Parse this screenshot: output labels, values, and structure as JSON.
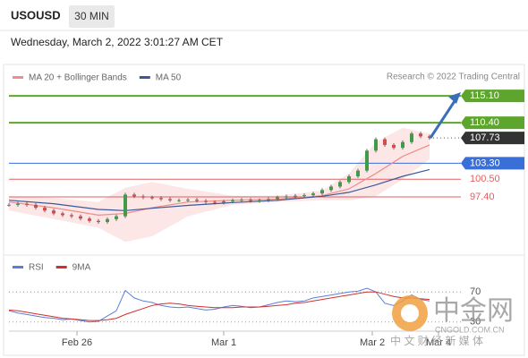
{
  "header": {
    "symbol": "USOUSD",
    "interval": "30 MIN",
    "datetime": "Wednesday, March 2, 2022 3:01:27 AM CET",
    "credit": "Research © 2022 Trading Central"
  },
  "chart_data": [
    {
      "type": "candlestick",
      "x": [
        0,
        1,
        2,
        3,
        4,
        5,
        6,
        7,
        8,
        9,
        10,
        11,
        12,
        13,
        14,
        15,
        16,
        17,
        18,
        19,
        20,
        21,
        22,
        23,
        24,
        25,
        26,
        27,
        28,
        29,
        30,
        31,
        32,
        33,
        34,
        35,
        36,
        37,
        38,
        39,
        40,
        41,
        42,
        43,
        44,
        45,
        46,
        47
      ],
      "close": [
        96.0,
        96.2,
        96.0,
        95.5,
        95.0,
        94.5,
        94.2,
        94.0,
        93.6,
        93.2,
        93.0,
        93.5,
        94.0,
        97.8,
        97.5,
        97.3,
        97.2,
        97.0,
        96.8,
        96.8,
        96.9,
        96.7,
        96.5,
        96.4,
        96.6,
        96.8,
        96.9,
        96.7,
        96.8,
        97.0,
        97.3,
        97.5,
        97.6,
        97.7,
        98.0,
        98.6,
        99.2,
        100.0,
        101.0,
        102.0,
        105.5,
        107.5,
        106.5,
        106.0,
        107.0,
        108.5,
        108.0,
        107.73
      ],
      "up_color": "#3f9a4c",
      "down_color": "#d24a4a",
      "xlim": [
        0,
        50.5
      ],
      "ylim": [
        87.2,
        117
      ],
      "series": [
        {
          "name": "MA 20 + Bollinger Bands",
          "color": "#f08c8c",
          "x": [
            0,
            5,
            10,
            13,
            16,
            20,
            25,
            30,
            35,
            38,
            41,
            44,
            47
          ],
          "values": [
            96.5,
            95.5,
            94.2,
            94.5,
            95.5,
            96.5,
            96.8,
            97.0,
            97.6,
            98.8,
            101.5,
            104.5,
            106.5
          ],
          "upper": [
            97.5,
            97.2,
            96.5,
            99.0,
            100.0,
            98.8,
            97.6,
            97.6,
            98.5,
            101.5,
            107.0,
            109.5,
            108.5
          ],
          "lower": [
            95.0,
            93.5,
            92.0,
            89.5,
            90.5,
            94.0,
            96.0,
            96.5,
            96.8,
            96.8,
            97.5,
            100.5,
            104.0
          ]
        },
        {
          "name": "MA 50",
          "color": "#3b5998",
          "x": [
            0,
            5,
            10,
            13,
            16,
            20,
            25,
            30,
            35,
            38,
            41,
            44,
            47
          ],
          "values": [
            96.8,
            96.2,
            95.2,
            95.0,
            95.4,
            95.9,
            96.4,
            96.8,
            97.5,
            98.2,
            99.5,
            101.0,
            102.2
          ]
        }
      ],
      "levels": [
        {
          "value": 115.1,
          "label": "115.10",
          "color": "#5ea52e",
          "style": "box"
        },
        {
          "value": 110.4,
          "label": "110.40",
          "color": "#5ea52e",
          "style": "box"
        },
        {
          "value": 107.73,
          "label": "107.73",
          "color": "#333333",
          "style": "current"
        },
        {
          "value": 103.3,
          "label": "103.30",
          "color": "#3a6fd8",
          "style": "box"
        },
        {
          "value": 100.5,
          "label": "100.50",
          "color": "#e06060",
          "style": "text"
        },
        {
          "value": 97.4,
          "label": "97.40",
          "color": "#e06060",
          "style": "text"
        }
      ]
    },
    {
      "type": "line",
      "x": [
        0,
        1,
        2,
        3,
        4,
        5,
        6,
        7,
        8,
        9,
        10,
        11,
        12,
        13,
        14,
        15,
        16,
        17,
        18,
        19,
        20,
        21,
        22,
        23,
        24,
        25,
        26,
        27,
        28,
        29,
        30,
        31,
        32,
        33,
        34,
        35,
        36,
        37,
        38,
        39,
        40,
        41,
        42,
        43,
        44,
        45,
        46,
        47
      ],
      "series": [
        {
          "name": "RSI",
          "color": "#5b7fd6",
          "values": [
            45,
            42,
            40,
            38,
            36,
            35,
            33,
            34,
            32,
            30,
            31,
            38,
            45,
            72,
            62,
            58,
            56,
            52,
            50,
            49,
            50,
            48,
            46,
            47,
            50,
            52,
            51,
            49,
            50,
            53,
            56,
            58,
            57,
            58,
            62,
            64,
            66,
            68,
            70,
            71,
            75,
            70,
            55,
            52,
            58,
            66,
            60,
            58
          ]
        },
        {
          "name": "9MA",
          "color": "#d03030",
          "values": [
            46,
            45,
            43,
            41,
            39,
            37,
            35,
            34,
            33,
            32,
            32,
            33,
            35,
            40,
            44,
            48,
            52,
            54,
            55,
            54,
            52,
            51,
            50,
            49,
            49,
            49,
            50,
            50,
            50,
            51,
            52,
            53,
            55,
            56,
            58,
            60,
            62,
            64,
            66,
            68,
            70,
            70,
            67,
            64,
            62,
            62,
            61,
            60
          ]
        }
      ],
      "xlim": [
        0,
        50.5
      ],
      "ylim": [
        0,
        100
      ],
      "yticks": [
        30,
        70
      ],
      "xticks": [
        {
          "value": 7.6,
          "label": "Feb 26"
        },
        {
          "value": 24,
          "label": "Mar 1"
        },
        {
          "value": 40.6,
          "label": "Mar 2"
        },
        {
          "value": 48,
          "label": "Mar 4"
        }
      ]
    }
  ],
  "watermark": {
    "logo": "中金网",
    "site": "CNGOLD.COM.CN",
    "slogan": "中 文 财 经 新 媒 体"
  }
}
